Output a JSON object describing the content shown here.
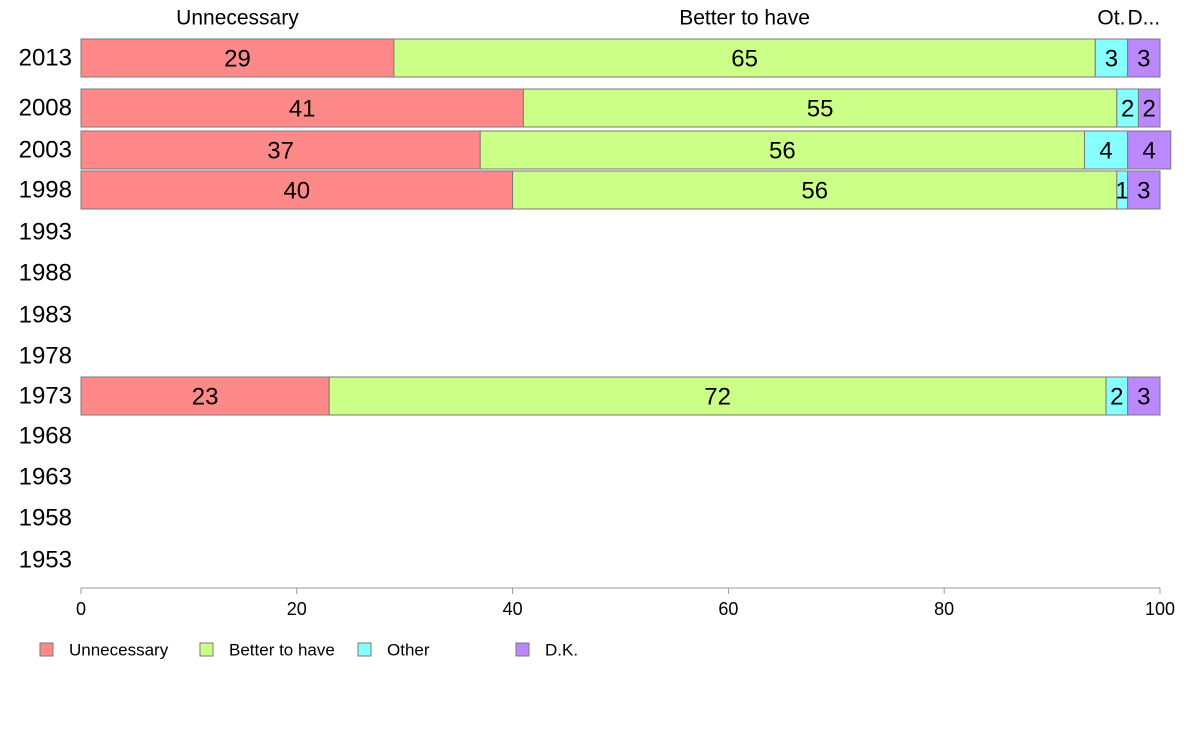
{
  "chart_data": {
    "type": "bar",
    "orientation": "horizontal",
    "stacked": true,
    "title": "",
    "xlabel": "",
    "ylabel": "",
    "xlim": [
      0,
      100
    ],
    "x_ticks": [
      0,
      20,
      40,
      60,
      80,
      100
    ],
    "categories": [
      "2013",
      "2008",
      "2003",
      "1998",
      "1993",
      "1988",
      "1983",
      "1978",
      "1973",
      "1968",
      "1963",
      "1958",
      "1953"
    ],
    "series": [
      {
        "name": "Unnecessary",
        "color": "#ff8888",
        "values": [
          29,
          41,
          37,
          40,
          null,
          null,
          null,
          null,
          23,
          null,
          null,
          null,
          null
        ]
      },
      {
        "name": "Better to have",
        "color": "#ccff88",
        "values": [
          65,
          55,
          56,
          56,
          null,
          null,
          null,
          null,
          72,
          null,
          null,
          null,
          null
        ]
      },
      {
        "name": "Other",
        "color": "#88ffff",
        "values": [
          3,
          2,
          4,
          1,
          null,
          null,
          null,
          null,
          2,
          null,
          null,
          null,
          null
        ]
      },
      {
        "name": "D.K.",
        "color": "#bb88ff",
        "values": [
          3,
          2,
          4,
          3,
          null,
          null,
          null,
          null,
          3,
          null,
          null,
          null,
          null
        ]
      }
    ],
    "column_headers": [
      "Unnecessary",
      "Better to have",
      "Ot.",
      "D..."
    ],
    "grid": false,
    "legend_position": "bottom-left"
  }
}
